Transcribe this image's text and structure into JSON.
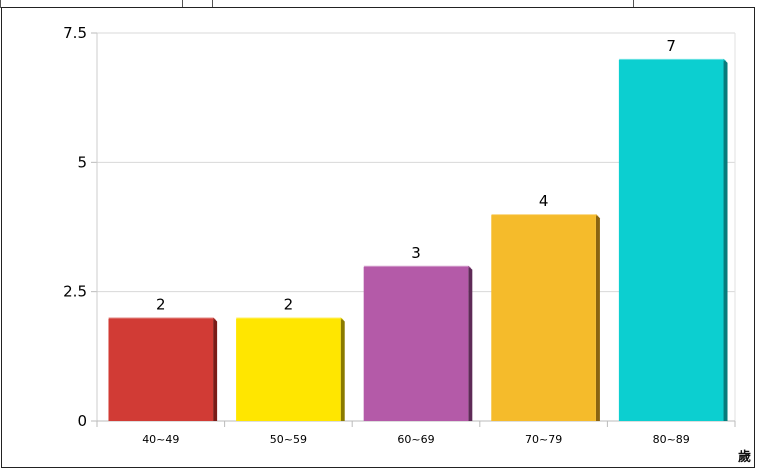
{
  "chart_data": {
    "type": "bar",
    "categories": [
      "40~49",
      "50~59",
      "60~69",
      "70~79",
      "80~89"
    ],
    "values": [
      2,
      2,
      3,
      4,
      7
    ],
    "colors": [
      "#d13b35",
      "#ffe600",
      "#b45aa8",
      "#f5bb2b",
      "#0ccfd0"
    ],
    "shadow_colors": [
      "#7a1b17",
      "#8a7a00",
      "#5e2a57",
      "#8a6410",
      "#067b7c"
    ],
    "yticks": [
      "0",
      "2.5",
      "5",
      "7.5"
    ],
    "ytick_values": [
      0,
      2.5,
      5,
      7.5
    ],
    "ylim": [
      0,
      7.5
    ],
    "title": "",
    "xlabel": "",
    "ylabel": "",
    "grid": true,
    "data_labels": [
      "2",
      "2",
      "3",
      "4",
      "7"
    ]
  },
  "corner_label": "歲"
}
